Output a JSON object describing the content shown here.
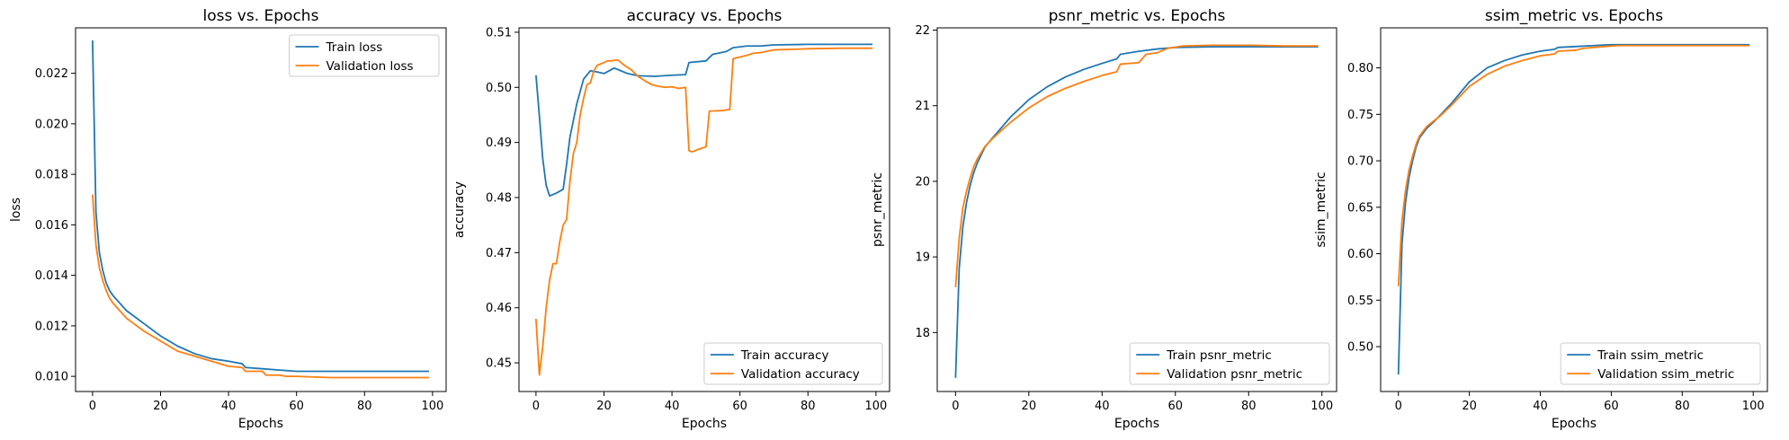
{
  "colors": {
    "train": "#1f77b4",
    "validation": "#ff7f0e"
  },
  "chart_data": [
    {
      "type": "line",
      "title": "loss vs. Epochs",
      "xlabel": "Epochs",
      "ylabel": "loss",
      "xlim": [
        -5,
        104
      ],
      "ylim": [
        0.0094,
        0.0238
      ],
      "xticks": [
        0,
        20,
        40,
        60,
        80,
        100
      ],
      "yticks": [
        0.01,
        0.012,
        0.014,
        0.016,
        0.018,
        0.02,
        0.022
      ],
      "ytick_labels": [
        "0.010",
        "0.012",
        "0.014",
        "0.016",
        "0.018",
        "0.020",
        "0.022"
      ],
      "legend_position": "upper right",
      "series": [
        {
          "name": "Train loss",
          "color_key": "train",
          "points": [
            [
              0,
              0.0233
            ],
            [
              1,
              0.0165
            ],
            [
              2,
              0.0149
            ],
            [
              3,
              0.0142
            ],
            [
              4,
              0.0137
            ],
            [
              5,
              0.0134
            ],
            [
              6,
              0.0132
            ],
            [
              8,
              0.0129
            ],
            [
              10,
              0.0126
            ],
            [
              12,
              0.0124
            ],
            [
              15,
              0.0121
            ],
            [
              20,
              0.0116
            ],
            [
              25,
              0.0112
            ],
            [
              30,
              0.0109
            ],
            [
              35,
              0.0107
            ],
            [
              40,
              0.0106
            ],
            [
              44,
              0.0105
            ],
            [
              45,
              0.01035
            ],
            [
              50,
              0.0103
            ],
            [
              55,
              0.01025
            ],
            [
              60,
              0.0102
            ],
            [
              70,
              0.0102
            ],
            [
              80,
              0.0102
            ],
            [
              90,
              0.0102
            ],
            [
              99,
              0.0102
            ]
          ]
        },
        {
          "name": "Validation loss",
          "color_key": "validation",
          "points": [
            [
              0,
              0.0172
            ],
            [
              1,
              0.0152
            ],
            [
              2,
              0.0143
            ],
            [
              3,
              0.0138
            ],
            [
              4,
              0.0134
            ],
            [
              5,
              0.0131
            ],
            [
              6,
              0.0129
            ],
            [
              8,
              0.0126
            ],
            [
              10,
              0.0123
            ],
            [
              12,
              0.0121
            ],
            [
              15,
              0.0118
            ],
            [
              20,
              0.0114
            ],
            [
              25,
              0.011
            ],
            [
              30,
              0.0108
            ],
            [
              35,
              0.0106
            ],
            [
              40,
              0.0104
            ],
            [
              44,
              0.01035
            ],
            [
              45,
              0.0102
            ],
            [
              50,
              0.0102
            ],
            [
              51,
              0.01005
            ],
            [
              55,
              0.01005
            ],
            [
              57,
              0.01
            ],
            [
              60,
              0.01
            ],
            [
              70,
              0.00995
            ],
            [
              80,
              0.00995
            ],
            [
              90,
              0.00995
            ],
            [
              99,
              0.00995
            ]
          ]
        }
      ]
    },
    {
      "type": "line",
      "title": "accuracy vs. Epochs",
      "xlabel": "Epochs",
      "ylabel": "accuracy",
      "xlim": [
        -5,
        104
      ],
      "ylim": [
        0.4448,
        0.5108
      ],
      "xticks": [
        0,
        20,
        40,
        60,
        80,
        100
      ],
      "yticks": [
        0.45,
        0.46,
        0.47,
        0.48,
        0.49,
        0.5,
        0.51
      ],
      "ytick_labels": [
        "0.45",
        "0.46",
        "0.47",
        "0.48",
        "0.49",
        "0.50",
        "0.51"
      ],
      "legend_position": "lower right",
      "series": [
        {
          "name": "Train accuracy",
          "color_key": "train",
          "points": [
            [
              0,
              0.5022
            ],
            [
              1,
              0.4948
            ],
            [
              2,
              0.487
            ],
            [
              3,
              0.4822
            ],
            [
              4,
              0.4803
            ],
            [
              6,
              0.4808
            ],
            [
              8,
              0.4815
            ],
            [
              9,
              0.486
            ],
            [
              10,
              0.491
            ],
            [
              12,
              0.497
            ],
            [
              14,
              0.5015
            ],
            [
              16,
              0.503
            ],
            [
              18,
              0.5028
            ],
            [
              20,
              0.5025
            ],
            [
              23,
              0.5035
            ],
            [
              25,
              0.503
            ],
            [
              27,
              0.5025
            ],
            [
              30,
              0.5021
            ],
            [
              35,
              0.502
            ],
            [
              40,
              0.5022
            ],
            [
              44,
              0.5023
            ],
            [
              45,
              0.5045
            ],
            [
              50,
              0.5048
            ],
            [
              52,
              0.506
            ],
            [
              56,
              0.5065
            ],
            [
              58,
              0.5072
            ],
            [
              62,
              0.5075
            ],
            [
              66,
              0.5075
            ],
            [
              70,
              0.5077
            ],
            [
              80,
              0.5078
            ],
            [
              90,
              0.5078
            ],
            [
              99,
              0.5078
            ]
          ]
        },
        {
          "name": "Validation accuracy",
          "color_key": "validation",
          "points": [
            [
              0,
              0.458
            ],
            [
              1,
              0.4478
            ],
            [
              2,
              0.453
            ],
            [
              3,
              0.46
            ],
            [
              4,
              0.465
            ],
            [
              5,
              0.468
            ],
            [
              6,
              0.468
            ],
            [
              7,
              0.472
            ],
            [
              8,
              0.475
            ],
            [
              9,
              0.476
            ],
            [
              10,
              0.483
            ],
            [
              11,
              0.488
            ],
            [
              12,
              0.49
            ],
            [
              13,
              0.495
            ],
            [
              14,
              0.498
            ],
            [
              15,
              0.5005
            ],
            [
              16,
              0.5008
            ],
            [
              17,
              0.503
            ],
            [
              18,
              0.504
            ],
            [
              20,
              0.5045
            ],
            [
              21,
              0.5048
            ],
            [
              22,
              0.5048
            ],
            [
              24,
              0.505
            ],
            [
              26,
              0.504
            ],
            [
              28,
              0.5032
            ],
            [
              30,
              0.502
            ],
            [
              32,
              0.5012
            ],
            [
              34,
              0.5005
            ],
            [
              36,
              0.5002
            ],
            [
              38,
              0.5
            ],
            [
              40,
              0.5001
            ],
            [
              42,
              0.4998
            ],
            [
              44,
              0.5
            ],
            [
              45,
              0.4885
            ],
            [
              46,
              0.4883
            ],
            [
              48,
              0.4888
            ],
            [
              50,
              0.4892
            ],
            [
              51,
              0.4957
            ],
            [
              52,
              0.4957
            ],
            [
              55,
              0.4958
            ],
            [
              57,
              0.496
            ],
            [
              58,
              0.5052
            ],
            [
              60,
              0.5055
            ],
            [
              62,
              0.5058
            ],
            [
              64,
              0.5062
            ],
            [
              66,
              0.5063
            ],
            [
              70,
              0.5068
            ],
            [
              80,
              0.507
            ],
            [
              90,
              0.5071
            ],
            [
              99,
              0.5071
            ]
          ]
        }
      ]
    },
    {
      "type": "line",
      "title": "psnr_metric vs. Epochs",
      "xlabel": "Epochs",
      "ylabel": "psnr_metric",
      "xlim": [
        -5,
        104
      ],
      "ylim": [
        17.22,
        22.03
      ],
      "xticks": [
        0,
        20,
        40,
        60,
        80,
        100
      ],
      "yticks": [
        18,
        19,
        20,
        21,
        22
      ],
      "ytick_labels": [
        "18",
        "19",
        "20",
        "21",
        "22"
      ],
      "legend_position": "lower right",
      "series": [
        {
          "name": "Train psnr_metric",
          "color_key": "train",
          "points": [
            [
              0,
              17.4
            ],
            [
              1,
              18.85
            ],
            [
              2,
              19.4
            ],
            [
              3,
              19.72
            ],
            [
              4,
              19.95
            ],
            [
              5,
              20.12
            ],
            [
              6,
              20.25
            ],
            [
              8,
              20.45
            ],
            [
              10,
              20.57
            ],
            [
              12,
              20.68
            ],
            [
              15,
              20.85
            ],
            [
              20,
              21.08
            ],
            [
              25,
              21.25
            ],
            [
              30,
              21.38
            ],
            [
              35,
              21.48
            ],
            [
              40,
              21.56
            ],
            [
              44,
              21.62
            ],
            [
              45,
              21.68
            ],
            [
              50,
              21.72
            ],
            [
              55,
              21.75
            ],
            [
              60,
              21.77
            ],
            [
              70,
              21.78
            ],
            [
              80,
              21.78
            ],
            [
              90,
              21.78
            ],
            [
              99,
              21.78
            ]
          ]
        },
        {
          "name": "Validation psnr_metric",
          "color_key": "validation",
          "points": [
            [
              0,
              18.6
            ],
            [
              1,
              19.25
            ],
            [
              2,
              19.65
            ],
            [
              3,
              19.87
            ],
            [
              4,
              20.05
            ],
            [
              5,
              20.2
            ],
            [
              6,
              20.3
            ],
            [
              8,
              20.46
            ],
            [
              10,
              20.56
            ],
            [
              12,
              20.65
            ],
            [
              15,
              20.78
            ],
            [
              20,
              20.97
            ],
            [
              25,
              21.12
            ],
            [
              30,
              21.23
            ],
            [
              35,
              21.32
            ],
            [
              40,
              21.4
            ],
            [
              44,
              21.45
            ],
            [
              45,
              21.55
            ],
            [
              50,
              21.57
            ],
            [
              52,
              21.68
            ],
            [
              55,
              21.7
            ],
            [
              58,
              21.76
            ],
            [
              62,
              21.79
            ],
            [
              70,
              21.8
            ],
            [
              80,
              21.8
            ],
            [
              90,
              21.79
            ],
            [
              99,
              21.79
            ]
          ]
        }
      ]
    },
    {
      "type": "line",
      "title": "ssim_metric vs. Epochs",
      "xlabel": "Epochs",
      "ylabel": "ssim_metric",
      "xlim": [
        -5,
        104
      ],
      "ylim": [
        0.4517,
        0.8431
      ],
      "xticks": [
        0,
        20,
        40,
        60,
        80,
        100
      ],
      "yticks": [
        0.5,
        0.55,
        0.6,
        0.65,
        0.7,
        0.75,
        0.8
      ],
      "ytick_labels": [
        "0.50",
        "0.55",
        "0.60",
        "0.65",
        "0.70",
        "0.75",
        "0.80"
      ],
      "legend_position": "lower right",
      "series": [
        {
          "name": "Train ssim_metric",
          "color_key": "train",
          "points": [
            [
              0,
              0.47
            ],
            [
              1,
              0.61
            ],
            [
              2,
              0.655
            ],
            [
              3,
              0.682
            ],
            [
              4,
              0.7
            ],
            [
              5,
              0.715
            ],
            [
              6,
              0.725
            ],
            [
              8,
              0.735
            ],
            [
              10,
              0.742
            ],
            [
              12,
              0.75
            ],
            [
              15,
              0.762
            ],
            [
              20,
              0.785
            ],
            [
              25,
              0.8
            ],
            [
              30,
              0.808
            ],
            [
              35,
              0.814
            ],
            [
              40,
              0.818
            ],
            [
              44,
              0.82
            ],
            [
              45,
              0.822
            ],
            [
              50,
              0.823
            ],
            [
              55,
              0.824
            ],
            [
              60,
              0.825
            ],
            [
              70,
              0.825
            ],
            [
              80,
              0.825
            ],
            [
              90,
              0.825
            ],
            [
              99,
              0.825
            ]
          ]
        },
        {
          "name": "Validation ssim_metric",
          "color_key": "validation",
          "points": [
            [
              0,
              0.565
            ],
            [
              1,
              0.635
            ],
            [
              2,
              0.668
            ],
            [
              3,
              0.69
            ],
            [
              4,
              0.705
            ],
            [
              5,
              0.718
            ],
            [
              6,
              0.727
            ],
            [
              8,
              0.737
            ],
            [
              10,
              0.743
            ],
            [
              12,
              0.749
            ],
            [
              15,
              0.76
            ],
            [
              20,
              0.78
            ],
            [
              25,
              0.793
            ],
            [
              30,
              0.802
            ],
            [
              35,
              0.808
            ],
            [
              40,
              0.813
            ],
            [
              44,
              0.815
            ],
            [
              45,
              0.818
            ],
            [
              50,
              0.819
            ],
            [
              52,
              0.821
            ],
            [
              55,
              0.822
            ],
            [
              58,
              0.823
            ],
            [
              62,
              0.824
            ],
            [
              70,
              0.824
            ],
            [
              80,
              0.824
            ],
            [
              90,
              0.824
            ],
            [
              99,
              0.824
            ]
          ]
        }
      ]
    }
  ]
}
